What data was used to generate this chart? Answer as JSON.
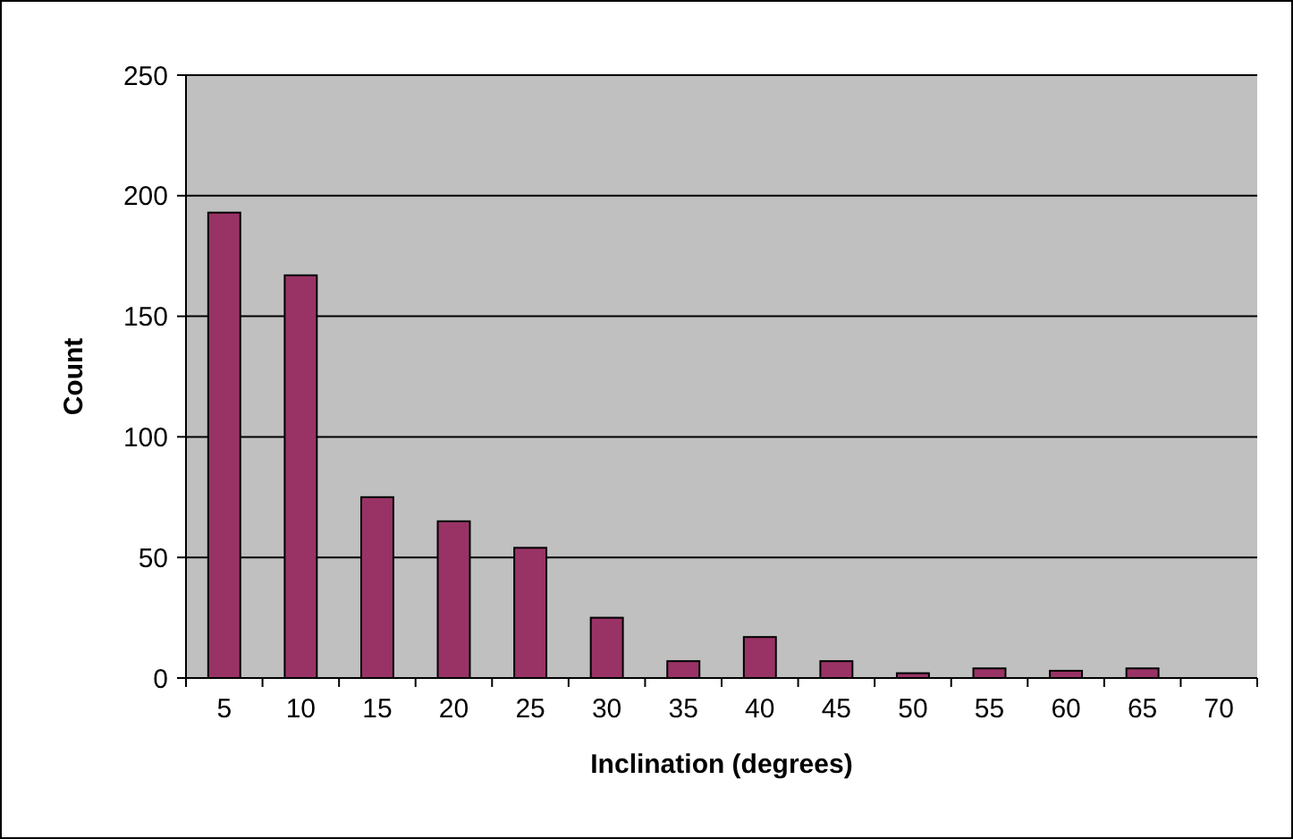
{
  "chart_data": {
    "type": "bar",
    "xlabel": "Inclination (degrees)",
    "ylabel": "Count",
    "categories": [
      "5",
      "10",
      "15",
      "20",
      "25",
      "30",
      "35",
      "40",
      "45",
      "50",
      "55",
      "60",
      "65",
      "70"
    ],
    "values": [
      193,
      167,
      75,
      65,
      54,
      25,
      7,
      17,
      7,
      2,
      4,
      3,
      4,
      0
    ],
    "color": "#993366",
    "ylim": [
      0,
      250
    ],
    "yticks": [
      0,
      50,
      100,
      150,
      200,
      250
    ],
    "grid": "y"
  }
}
